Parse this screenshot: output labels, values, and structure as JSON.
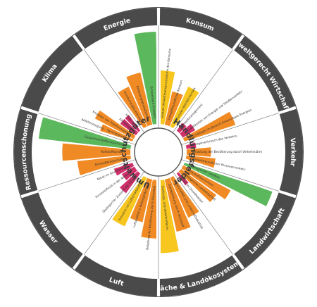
{
  "colors": {
    "green": "#5cb85c",
    "yellow": "#f7c61f",
    "orange": "#f08a24",
    "red": "#d0306a",
    "ring": "#4a4a4a",
    "divider": "#6a6a6a"
  },
  "hub": {
    "left_label": "Umweltschutzgüter",
    "right_label": "Handlungsfelder"
  },
  "sectors": [
    {
      "label": "Energie",
      "indicators": [
        {
          "label": "Primärenergieverbrauch",
          "status": "orange",
          "level": 0.45
        },
        {
          "label": "Endenergieproduktivität",
          "status": "orange",
          "level": 0.55
        },
        {
          "label": "Erneuerbare Energien",
          "status": "green",
          "level": 0.95
        }
      ]
    },
    {
      "label": "Konsum",
      "indicators": [
        {
          "label": "Globale Umweltinanspruchnahme des Konsums",
          "status": "yellow",
          "level": 0.55
        },
        {
          "label": "Umweltfreundlicher Konsum",
          "status": "orange",
          "level": 0.35
        },
        {
          "label": "Nationaler Wohlfahrtsindex",
          "status": "yellow",
          "level": 0.45
        }
      ]
    },
    {
      "label": "Umweltgerecht Wirtschaften",
      "indicators": [
        {
          "label": "Umweltmanagement",
          "status": "red",
          "level": 0.1
        },
        {
          "label": "Umweltkosten von Energie und Straßenverkehr",
          "status": "red",
          "level": 0.15
        },
        {
          "label": "Beschäftigte im Bereich Erneuerbare Energien",
          "status": "orange",
          "level": 0.55
        }
      ]
    },
    {
      "label": "Verkehr",
      "indicators": [
        {
          "label": "Energieverbrauch des Verkehrs",
          "status": "red",
          "level": 0.1
        },
        {
          "label": "Belastung der Bevölkerung durch Verkehrslärm",
          "status": "orange",
          "level": 0.25
        },
        {
          "label": "Umweltfreundlicher Personenverkehr",
          "status": "orange",
          "level": 0.3
        }
      ]
    },
    {
      "label": "Landwirtschaft",
      "indicators": [
        {
          "label": "Ökologischer Landbau",
          "status": "green",
          "level": 0.95
        },
        {
          "label": "Stickstoffüberschuss",
          "status": "orange",
          "level": 0.55
        },
        {
          "label": "Ökologische Landwirtschaft",
          "status": "orange",
          "level": 0.45
        },
        {
          "label": "Nitrat im Grundwasser",
          "status": "red",
          "level": 0.15
        }
      ]
    },
    {
      "label": "Fläche & Landökosysteme",
      "indicators": [
        {
          "label": "Artenvielfalt und Landschaftsqualität",
          "status": "orange",
          "level": 0.45
        },
        {
          "label": "Eutrophierung durch Stickstoff",
          "status": "orange",
          "level": 0.55
        },
        {
          "label": "Siedlungs- und Verkehrsfläche",
          "status": "yellow",
          "level": 0.75
        }
      ]
    },
    {
      "label": "Luft",
      "indicators": [
        {
          "label": "Belastung der Bevölkerung durch Feinstaub",
          "status": "orange",
          "level": 0.6
        },
        {
          "label": "Luftqualität in Ballungsräumen",
          "status": "orange",
          "level": 0.45
        },
        {
          "label": "Emission von Luftschadstoffen",
          "status": "yellow",
          "level": 0.55
        }
      ]
    },
    {
      "label": "Wasser",
      "indicators": [
        {
          "label": "Ökologischer Zustand der Flüsse",
          "status": "red",
          "level": 0.25
        },
        {
          "label": "Kunststoffmüll in der Nordsee",
          "status": "red",
          "level": 0.15
        },
        {
          "label": "Nitrat im Grundwasser",
          "status": "red",
          "level": 0.2
        }
      ]
    },
    {
      "label": "Ressourcenschonung",
      "indicators": [
        {
          "label": "Rohstoffproduktivität",
          "status": "orange",
          "level": 0.55
        },
        {
          "label": "Rohstoffkonsum",
          "status": "orange",
          "level": 0.7
        },
        {
          "label": "Gesamtrohstoffproduktivität",
          "status": "green",
          "level": 0.95
        }
      ]
    },
    {
      "label": "Klima",
      "indicators": [
        {
          "label": "Abfallerzeugung – Sammelquoten",
          "status": "orange",
          "level": 0.35
        },
        {
          "label": "Emission von Treibhausgasen",
          "status": "orange",
          "level": 0.45
        },
        {
          "label": "Klimafolgen",
          "status": "red",
          "level": 0.2
        },
        {
          "label": "Heiße Tage",
          "status": "red",
          "level": 0.2
        }
      ]
    }
  ]
}
